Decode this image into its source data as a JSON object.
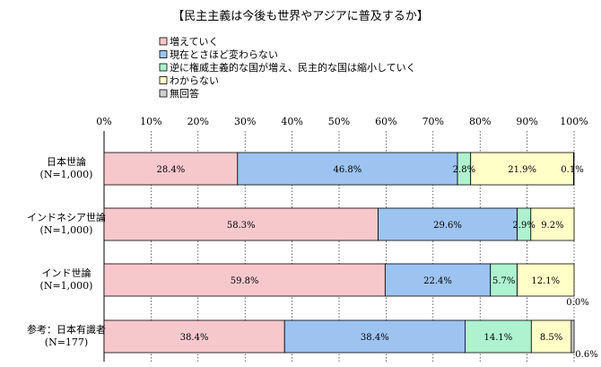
{
  "chart_data": {
    "type": "bar",
    "orientation": "horizontal",
    "stacked": "percent",
    "title": "【民主主義は今後も世界やアジアに普及するか】",
    "categories": [
      [
        "日本世論",
        "(N=1,000)"
      ],
      [
        "インドネシア世論",
        "(N=1,000)"
      ],
      [
        "インド世論",
        "(N=1,000)"
      ],
      [
        "参考：日本有識者",
        "(N=177)"
      ]
    ],
    "series": [
      {
        "name": "増えていく",
        "color": "#f6c8cc",
        "values": [
          28.4,
          58.3,
          59.8,
          38.4
        ]
      },
      {
        "name": "現在とさほど変わらない",
        "color": "#9dc3f0",
        "values": [
          46.8,
          29.6,
          22.4,
          38.4
        ]
      },
      {
        "name": "逆に権威主義的な国が増え、民主的な国は縮小していく",
        "color": "#aef2cf",
        "values": [
          2.8,
          2.9,
          5.7,
          14.1
        ]
      },
      {
        "name": "わからない",
        "color": "#ffffc8",
        "values": [
          21.9,
          9.2,
          12.1,
          8.5
        ]
      },
      {
        "name": "無回答",
        "color": "#d0d0d0",
        "values": [
          0.1,
          0.0,
          0.0,
          0.6
        ]
      }
    ],
    "data_labels": [
      [
        "28.4%",
        "46.8%",
        "2.8%",
        "21.9%",
        "0.1%"
      ],
      [
        "58.3%",
        "29.6%",
        "2.9%",
        "9.2%",
        ""
      ],
      [
        "59.8%",
        "22.4%",
        "5.7%",
        "12.1%",
        "0.0%"
      ],
      [
        "38.4%",
        "38.4%",
        "14.1%",
        "8.5%",
        "0.6%"
      ]
    ],
    "xticks": [
      "0%",
      "10%",
      "20%",
      "30%",
      "40%",
      "50%",
      "60%",
      "70%",
      "80%",
      "90%",
      "100%"
    ],
    "xlim": [
      0,
      100
    ],
    "legend_position": "top-left"
  }
}
